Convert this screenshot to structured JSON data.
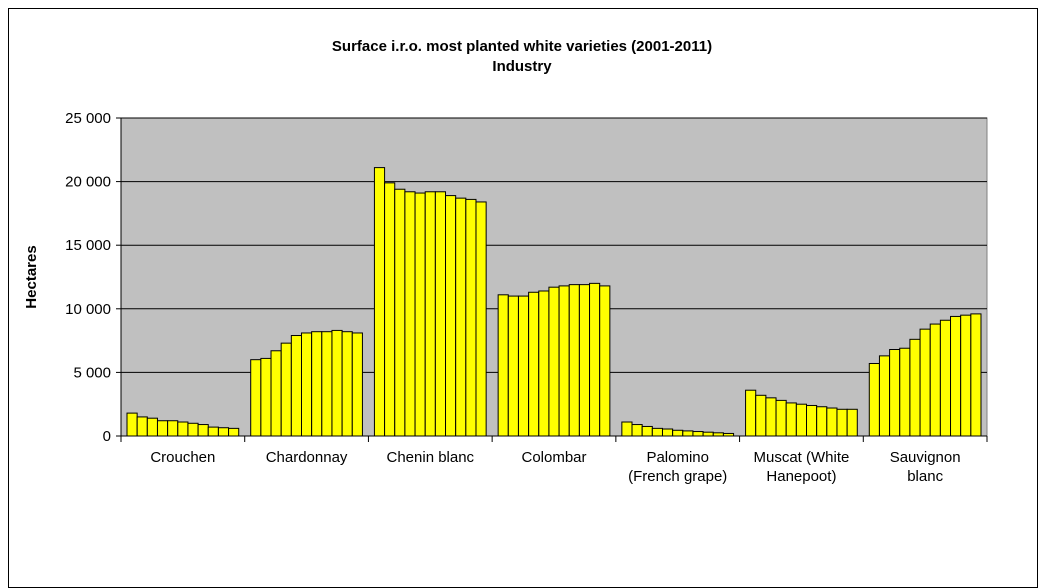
{
  "chart_data": {
    "type": "bar",
    "title": "Surface i.r.o. most planted white varieties (2001-2011)",
    "subtitle": "Industry",
    "xlabel": "",
    "ylabel": "Hectares",
    "ylim": [
      0,
      25000
    ],
    "yticks": [
      "0",
      "5 000",
      "10 000",
      "15 000",
      "20 000",
      "25 000"
    ],
    "ytick_values": [
      0,
      5000,
      10000,
      15000,
      20000,
      25000
    ],
    "grid": true,
    "plot_background": "#c0c0c0",
    "bar_color": "#ffff00",
    "categories": [
      {
        "lines": [
          "Crouchen"
        ],
        "values": [
          1800,
          1500,
          1400,
          1200,
          1200,
          1100,
          1000,
          900,
          700,
          650,
          600
        ]
      },
      {
        "lines": [
          "Chardonnay"
        ],
        "values": [
          6000,
          6100,
          6700,
          7300,
          7900,
          8100,
          8200,
          8200,
          8300,
          8200,
          8100
        ]
      },
      {
        "lines": [
          "Chenin blanc"
        ],
        "values": [
          21100,
          19900,
          19400,
          19200,
          19100,
          19200,
          19200,
          18900,
          18700,
          18600,
          18400
        ]
      },
      {
        "lines": [
          "Colombar"
        ],
        "values": [
          11100,
          11000,
          11000,
          11300,
          11400,
          11700,
          11800,
          11900,
          11900,
          12000,
          11800
        ]
      },
      {
        "lines": [
          "Palomino",
          "(French grape)"
        ],
        "values": [
          1100,
          900,
          750,
          600,
          550,
          450,
          400,
          350,
          300,
          250,
          200
        ]
      },
      {
        "lines": [
          "Muscat (White",
          "Hanepoot)"
        ],
        "values": [
          3600,
          3200,
          3000,
          2800,
          2600,
          2500,
          2400,
          2300,
          2200,
          2100,
          2100
        ]
      },
      {
        "lines": [
          "Sauvignon",
          "blanc"
        ],
        "values": [
          5700,
          6300,
          6800,
          6900,
          7600,
          8400,
          8800,
          9100,
          9400,
          9500,
          9600
        ]
      }
    ]
  }
}
